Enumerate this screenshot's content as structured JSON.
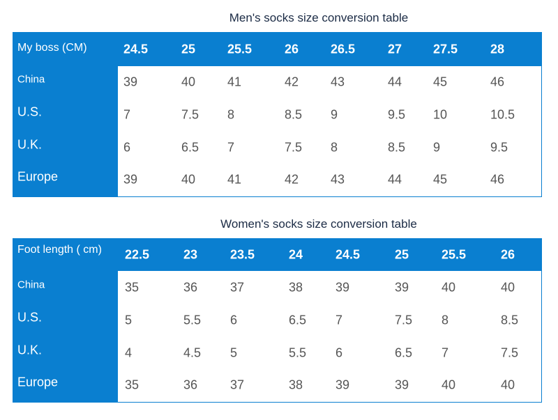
{
  "tables": [
    {
      "title": "Men's socks size conversion table",
      "header": {
        "label": "My boss (CM)",
        "values": [
          24.5,
          25,
          25.5,
          26,
          26.5,
          27,
          27.5,
          28
        ]
      },
      "rows": [
        {
          "label": "China",
          "values": [
            39,
            40,
            41,
            42,
            43,
            44,
            45,
            46
          ]
        },
        {
          "label": "U.S.",
          "values": [
            7,
            7.5,
            8,
            8.5,
            9,
            9.5,
            10,
            10.5
          ]
        },
        {
          "label": "U.K.",
          "values": [
            6,
            6.5,
            7,
            7.5,
            8,
            8.5,
            9,
            9.5
          ]
        },
        {
          "label": "Europe",
          "values": [
            39,
            40,
            41,
            42,
            43,
            44,
            45,
            46
          ]
        }
      ]
    },
    {
      "title": "Women's socks size conversion table",
      "header": {
        "label": "Foot length ( cm)",
        "values": [
          22.5,
          23,
          23.5,
          24,
          24.5,
          25,
          25.5,
          26
        ]
      },
      "rows": [
        {
          "label": "China",
          "values": [
            35,
            36,
            37,
            38,
            39,
            39,
            40,
            40
          ]
        },
        {
          "label": "U.S.",
          "values": [
            5,
            5.5,
            6,
            6.5,
            7,
            7.5,
            8,
            8.5
          ]
        },
        {
          "label": "U.K.",
          "values": [
            4,
            4.5,
            5,
            5.5,
            6,
            6.5,
            7,
            7.5
          ]
        },
        {
          "label": "Europe",
          "values": [
            35,
            36,
            37,
            38,
            39,
            39,
            40,
            40
          ]
        }
      ]
    }
  ]
}
